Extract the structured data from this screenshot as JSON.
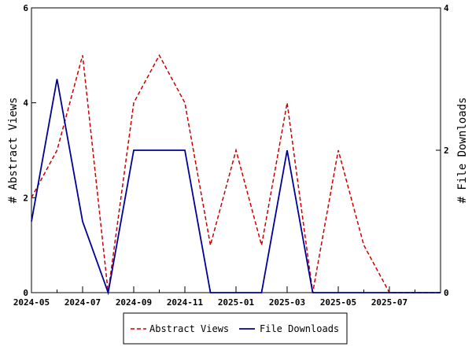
{
  "chart_data": {
    "type": "line",
    "x_tick_labels": [
      "2024-05",
      "2024-07",
      "2024-09",
      "2024-11",
      "2025-01",
      "2025-03",
      "2025-05",
      "2025-07"
    ],
    "x": [
      "2024-05",
      "2024-06",
      "2024-07",
      "2024-08",
      "2024-09",
      "2024-10",
      "2024-11",
      "2024-12",
      "2025-01",
      "2025-02",
      "2025-03",
      "2025-04",
      "2025-05",
      "2025-06",
      "2025-07",
      "2025-08",
      "2025-09"
    ],
    "xlim": [
      "2024-05",
      "2025-09"
    ],
    "ylabel_left": "# Abstract Views",
    "ylabel_right": "# File Downloads",
    "ylim_left": [
      0,
      6
    ],
    "ylim_right": [
      0,
      4
    ],
    "yticks_left": [
      "0",
      "2",
      "4",
      "6"
    ],
    "yticks_right": [
      "0",
      "2",
      "4"
    ],
    "legend_position": "bottom",
    "series": [
      {
        "name": "Abstract Views",
        "axis": "left",
        "color": "#cc0000",
        "style": "dashed",
        "values": [
          2,
          3,
          5,
          0,
          4,
          5,
          4,
          1,
          3,
          1,
          4,
          0,
          3,
          1,
          0,
          0,
          0
        ]
      },
      {
        "name": "File Downloads",
        "axis": "right",
        "color": "#000099",
        "style": "solid",
        "values": [
          1,
          3,
          1,
          0,
          2,
          2,
          2,
          0,
          0,
          0,
          2,
          0,
          0,
          0,
          0,
          0,
          0
        ]
      }
    ]
  }
}
